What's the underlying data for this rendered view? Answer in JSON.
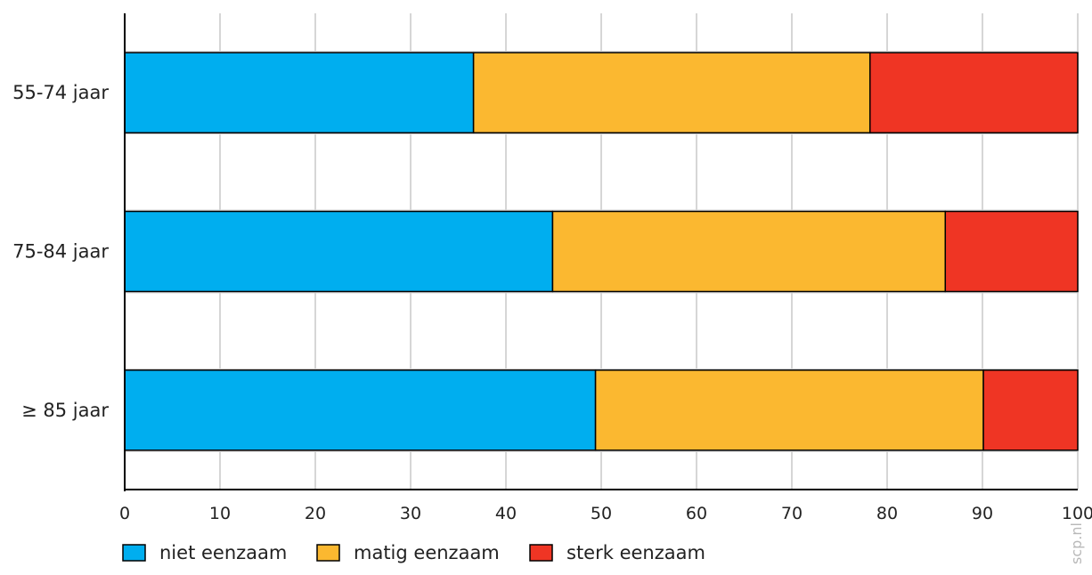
{
  "chart_data": {
    "type": "bar",
    "orientation": "horizontal",
    "stacked": true,
    "categories": [
      "55-74 jaar",
      "75-84 jaar",
      "≥ 85 jaar"
    ],
    "series": [
      {
        "name": "niet eenzaam",
        "color": "#00aeef",
        "values": [
          36.6,
          44.9,
          49.4
        ]
      },
      {
        "name": "matig eenzaam",
        "color": "#fbb830",
        "values": [
          41.6,
          41.2,
          40.7
        ]
      },
      {
        "name": "sterk eenzaam",
        "color": "#ef3524",
        "values": [
          21.8,
          13.9,
          9.9
        ]
      }
    ],
    "xlim": [
      0,
      100
    ],
    "xticks": [
      "0",
      "10",
      "20",
      "30",
      "40",
      "50",
      "60",
      "70",
      "80",
      "90",
      "100"
    ],
    "grid": true,
    "legend": "bottom-left"
  },
  "watermark": "scp.nl"
}
